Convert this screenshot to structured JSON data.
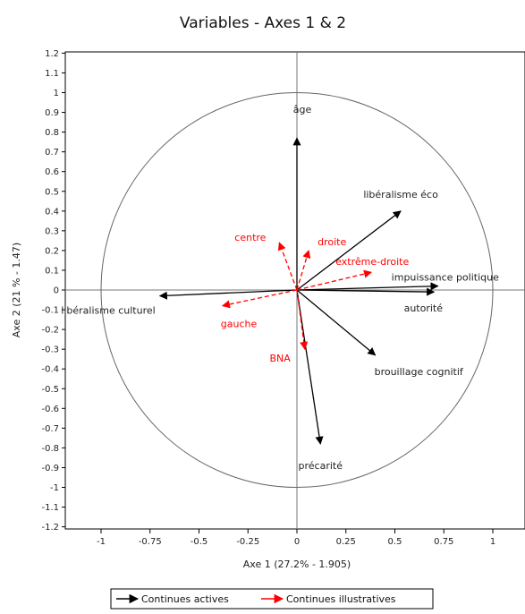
{
  "chart_data": {
    "type": "scatter",
    "subtype": "correlation-circle",
    "title": "Variables - Axes 1 & 2",
    "xlabel": "Axe 1 (27.2% - 1.905)",
    "ylabel": "Axe 2 (21 % - 1.47)",
    "xlim": [
      -1.2,
      1.2
    ],
    "ylim": [
      -1.2,
      1.2
    ],
    "x_ticks": [
      "-1",
      "-0.75",
      "-0.5",
      "-0.25",
      "0",
      "0.25",
      "0.5",
      "0.75",
      "1"
    ],
    "y_ticks": [
      "1.2",
      "1.1",
      "1",
      "0.9",
      "0.8",
      "0.7",
      "0.6",
      "0.5",
      "0.4",
      "0.3",
      "0.2",
      "0.1",
      "0",
      "-0.1",
      "-0.2",
      "-0.3",
      "-0.4",
      "-0.5",
      "-0.6",
      "-0.7",
      "-0.8",
      "-0.9",
      "-1",
      "-1.1",
      "-1.2"
    ],
    "unit_circle": true,
    "grid": false,
    "legend_position": "bottom-center",
    "series": [
      {
        "name": "Continues actives",
        "color": "#000000",
        "style": "solid",
        "points": [
          {
            "label": "âge",
            "x": 0.0,
            "y": 0.77
          },
          {
            "label": "libéralisme éco",
            "x": 0.53,
            "y": 0.4
          },
          {
            "label": "impuissance politique",
            "x": 0.72,
            "y": 0.02
          },
          {
            "label": "autorité",
            "x": 0.7,
            "y": -0.01
          },
          {
            "label": "brouillage cognitif",
            "x": 0.4,
            "y": -0.33
          },
          {
            "label": "précarité",
            "x": 0.12,
            "y": -0.78
          },
          {
            "label": "libéralisme culturel",
            "x": -0.7,
            "y": -0.03
          }
        ]
      },
      {
        "name": "Continues illustratives",
        "color": "#ff0000",
        "style": "dashed",
        "points": [
          {
            "label": "centre",
            "x": -0.09,
            "y": 0.24
          },
          {
            "label": "droite",
            "x": 0.06,
            "y": 0.2
          },
          {
            "label": "extrême-droite",
            "x": 0.38,
            "y": 0.09
          },
          {
            "label": "gauche",
            "x": -0.38,
            "y": -0.08
          },
          {
            "label": "BNA",
            "x": 0.04,
            "y": -0.3
          }
        ]
      }
    ]
  }
}
